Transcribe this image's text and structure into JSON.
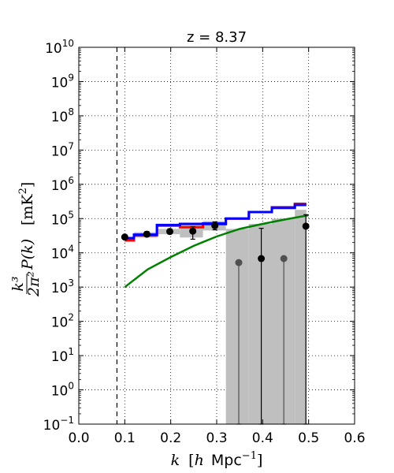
{
  "chart_data": {
    "type": "line",
    "title": "z = 8.37",
    "xlabel": {
      "symbol": "k",
      "bracket_open": "[",
      "h": "h",
      "unit": "Mpc",
      "power": "−1",
      "bracket_close": "]"
    },
    "ylabel": {
      "frac_num": "k³",
      "frac_den": "2π²",
      "func": "P(k)",
      "unit": "[mK",
      "unit_power": "2",
      "unit_close": "]"
    },
    "xlim": [
      0.0,
      0.6
    ],
    "ylim_log10": [
      -1,
      10
    ],
    "yscale": "log",
    "grid": true,
    "x_ticks": [
      {
        "value": 0.0,
        "label": "0.0"
      },
      {
        "value": 0.1,
        "label": "0.1"
      },
      {
        "value": 0.2,
        "label": "0.2"
      },
      {
        "value": 0.3,
        "label": "0.3"
      },
      {
        "value": 0.4,
        "label": "0.4"
      },
      {
        "value": 0.5,
        "label": "0.5"
      },
      {
        "value": 0.6,
        "label": "0.6"
      }
    ],
    "y_ticks": [
      {
        "exp": -1,
        "base": "10",
        "power": "−1"
      },
      {
        "exp": 0,
        "base": "10",
        "power": "0"
      },
      {
        "exp": 1,
        "base": "10",
        "power": "1"
      },
      {
        "exp": 2,
        "base": "10",
        "power": "2"
      },
      {
        "exp": 3,
        "base": "10",
        "power": "3"
      },
      {
        "exp": 4,
        "base": "10",
        "power": "4"
      },
      {
        "exp": 5,
        "base": "10",
        "power": "5"
      },
      {
        "exp": 6,
        "base": "10",
        "power": "6"
      },
      {
        "exp": 7,
        "base": "10",
        "power": "7"
      },
      {
        "exp": 8,
        "base": "10",
        "power": "8"
      },
      {
        "exp": 9,
        "base": "10",
        "power": "9"
      },
      {
        "exp": 10,
        "base": "10",
        "power": "10"
      }
    ],
    "vertical_line": {
      "x": 0.083,
      "style": "dashed",
      "color": "#000000"
    },
    "shaded_bars": {
      "color": "#bfbfbf",
      "bins": [
        {
          "x0": 0.12,
          "x1": 0.17,
          "y_low": 28000,
          "y_high": 40000
        },
        {
          "x0": 0.17,
          "x1": 0.22,
          "y_low": 35000,
          "y_high": 50000
        },
        {
          "x0": 0.22,
          "x1": 0.27,
          "y_low": 28000,
          "y_high": 65000
        },
        {
          "x0": 0.27,
          "x1": 0.32,
          "y_low": 45000,
          "y_high": 85000
        },
        {
          "x0": 0.32,
          "x1": 0.37,
          "y_low": 0.1,
          "y_high": 50000
        },
        {
          "x0": 0.37,
          "x1": 0.42,
          "y_low": 0.1,
          "y_high": 70000
        },
        {
          "x0": 0.42,
          "x1": 0.47,
          "y_low": 0.1,
          "y_high": 100000
        },
        {
          "x0": 0.47,
          "x1": 0.495,
          "y_low": 0.1,
          "y_high": 180000
        }
      ]
    },
    "step_series": [
      {
        "color": "#ff0000",
        "points": [
          [
            0.1,
            23000
          ],
          [
            0.12,
            23000
          ],
          [
            0.12,
            32000
          ],
          [
            0.17,
            32000
          ],
          [
            0.17,
            62000
          ],
          [
            0.22,
            62000
          ],
          [
            0.22,
            56000
          ],
          [
            0.27,
            56000
          ],
          [
            0.27,
            68000
          ],
          [
            0.32,
            68000
          ],
          [
            0.32,
            100000
          ],
          [
            0.37,
            100000
          ],
          [
            0.37,
            155000
          ],
          [
            0.42,
            155000
          ],
          [
            0.42,
            215000
          ],
          [
            0.47,
            215000
          ],
          [
            0.47,
            270000
          ],
          [
            0.495,
            270000
          ]
        ]
      },
      {
        "color": "#0000ff",
        "points": [
          [
            0.1,
            27000
          ],
          [
            0.12,
            27000
          ],
          [
            0.12,
            34000
          ],
          [
            0.17,
            34000
          ],
          [
            0.17,
            65000
          ],
          [
            0.22,
            65000
          ],
          [
            0.22,
            70000
          ],
          [
            0.27,
            70000
          ],
          [
            0.27,
            72000
          ],
          [
            0.32,
            72000
          ],
          [
            0.32,
            100000
          ],
          [
            0.37,
            100000
          ],
          [
            0.37,
            155000
          ],
          [
            0.42,
            155000
          ],
          [
            0.42,
            205000
          ],
          [
            0.47,
            205000
          ],
          [
            0.47,
            250000
          ],
          [
            0.495,
            250000
          ]
        ]
      }
    ],
    "line_series": [
      {
        "color": "#008000",
        "points": [
          [
            0.1,
            1000
          ],
          [
            0.15,
            3300
          ],
          [
            0.2,
            7500
          ],
          [
            0.25,
            16000
          ],
          [
            0.3,
            30000
          ],
          [
            0.35,
            50000
          ],
          [
            0.4,
            70000
          ],
          [
            0.45,
            95000
          ],
          [
            0.5,
            125000
          ]
        ]
      }
    ],
    "error_points": [
      {
        "x": 0.1,
        "y": 29000,
        "err_low": 29000,
        "err_high": 29000,
        "color": "#000000"
      },
      {
        "x": 0.148,
        "y": 35000,
        "err_low": 30000,
        "err_high": 42000,
        "color": "#000000"
      },
      {
        "x": 0.198,
        "y": 42000,
        "err_low": 36000,
        "err_high": 50000,
        "color": "#000000"
      },
      {
        "x": 0.248,
        "y": 43000,
        "err_low": 25000,
        "err_high": 58000,
        "color": "#000000"
      },
      {
        "x": 0.296,
        "y": 62000,
        "err_low": 47000,
        "err_high": 80000,
        "color": "#000000"
      },
      {
        "x": 0.348,
        "y": 5200,
        "err_low": 0.1,
        "err_high": 5200,
        "color": "#505050"
      },
      {
        "x": 0.397,
        "y": 6800,
        "err_low": 0.1,
        "err_high": 52000,
        "color": "#000000"
      },
      {
        "x": 0.446,
        "y": 6800,
        "err_low": 0.1,
        "err_high": 6800,
        "color": "#505050"
      },
      {
        "x": 0.494,
        "y": 60000,
        "err_low": 0.1,
        "err_high": 130000,
        "color": "#000000"
      }
    ]
  }
}
